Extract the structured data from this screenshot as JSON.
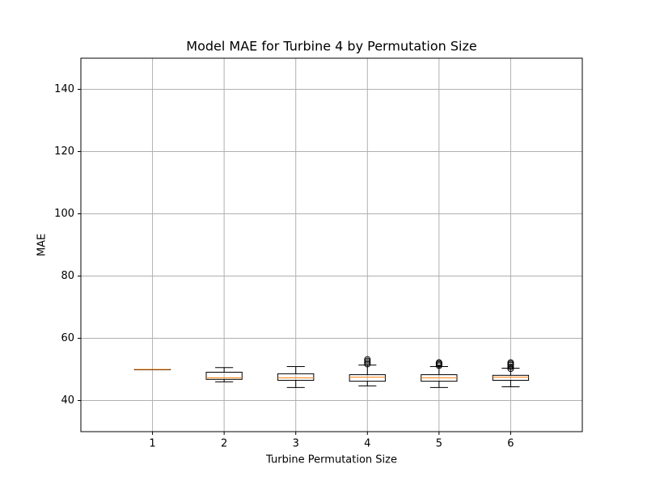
{
  "chart_data": {
    "type": "box",
    "title": "Model MAE for Turbine 4 by Permutation Size",
    "x_label": "Turbine Permutation Size",
    "y_label": "MAE",
    "x": [
      1,
      2,
      3,
      4,
      5,
      6
    ],
    "boxes": [
      {
        "min": 50,
        "q1": 50,
        "median": 50,
        "q3": 50,
        "max": 50,
        "outliers": []
      },
      {
        "min": 46.0,
        "q1": 46.8,
        "median": 47.3,
        "q3": 49.1,
        "max": 50.6,
        "outliers": []
      },
      {
        "min": 44.2,
        "q1": 46.5,
        "median": 47.3,
        "q3": 48.6,
        "max": 50.9,
        "outliers": []
      },
      {
        "min": 44.7,
        "q1": 46.2,
        "median": 47.5,
        "q3": 48.3,
        "max": 51.4,
        "outliers": [
          51.7,
          52.2,
          52.7,
          53.2
        ]
      },
      {
        "min": 44.2,
        "q1": 46.2,
        "median": 47.3,
        "q3": 48.3,
        "max": 50.9,
        "outliers": [
          51.2,
          51.6,
          52.0,
          52.2
        ]
      },
      {
        "min": 44.4,
        "q1": 46.5,
        "median": 47.5,
        "q3": 48.1,
        "max": 50.4,
        "outliers": [
          50.2,
          50.8,
          51.4,
          51.8,
          52.2
        ]
      }
    ],
    "box_color": "#000000",
    "median_color": "#ff7f0e",
    "xlim": [
      0,
      7
    ],
    "xticks": [
      1,
      2,
      3,
      4,
      5,
      6
    ],
    "ylim": [
      30,
      150
    ],
    "yticks": [
      40,
      60,
      80,
      100,
      120,
      140
    ],
    "grid": true
  }
}
